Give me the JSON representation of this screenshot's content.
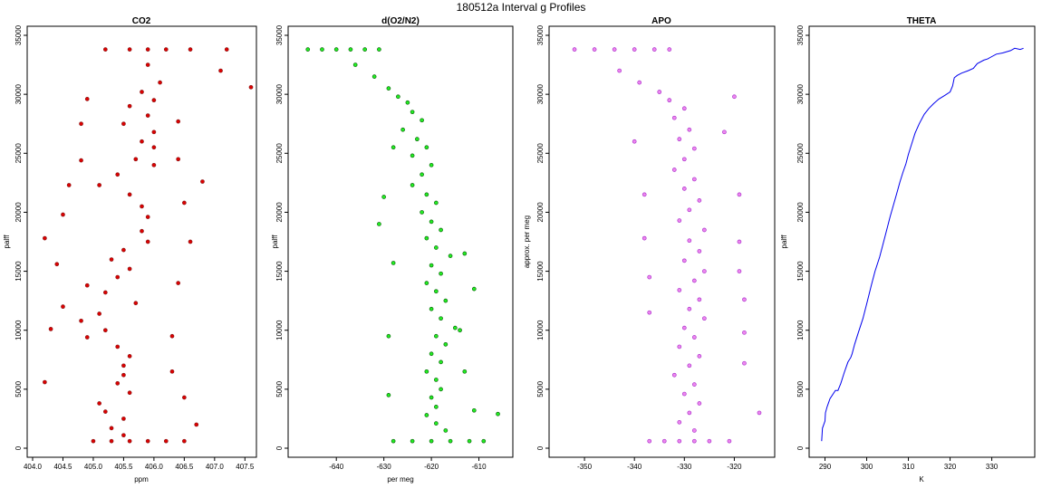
{
  "figure_title": "180512a   Interval g Profiles",
  "chart_data": [
    {
      "type": "scatter",
      "title": "CO2",
      "xlabel": "ppm",
      "ylabel": "palff",
      "xlim": [
        404.0,
        407.6
      ],
      "ylim": [
        0,
        35000
      ],
      "xticks": [
        404.0,
        404.5,
        405.0,
        405.5,
        406.0,
        406.5,
        407.0,
        407.5
      ],
      "xtick_labels": [
        "404.0",
        "404.5",
        "405.0",
        "405.5",
        "406.0",
        "406.5",
        "407.0",
        "407.5"
      ],
      "yticks": [
        0,
        5000,
        10000,
        15000,
        20000,
        25000,
        30000,
        35000
      ],
      "ytick_labels": [
        "0",
        "5000",
        "10000",
        "15000",
        "20000",
        "25000",
        "30000",
        "35000"
      ],
      "marker_color": "#dd0000",
      "marker_edge": "#8b1a1a",
      "points": [
        [
          405.0,
          600
        ],
        [
          405.3,
          600
        ],
        [
          405.6,
          600
        ],
        [
          405.9,
          600
        ],
        [
          406.2,
          600
        ],
        [
          406.5,
          600
        ],
        [
          405.2,
          33800
        ],
        [
          405.6,
          33800
        ],
        [
          405.9,
          33800
        ],
        [
          406.2,
          33800
        ],
        [
          406.6,
          33800
        ],
        [
          407.2,
          33800
        ],
        [
          405.9,
          32500
        ],
        [
          406.1,
          31000
        ],
        [
          405.8,
          30200
        ],
        [
          406.0,
          29500
        ],
        [
          405.6,
          29000
        ],
        [
          405.9,
          28200
        ],
        [
          405.5,
          27500
        ],
        [
          406.0,
          26800
        ],
        [
          405.8,
          26000
        ],
        [
          406.0,
          25500
        ],
        [
          405.7,
          24500
        ],
        [
          406.0,
          24000
        ],
        [
          405.4,
          23200
        ],
        [
          405.1,
          22300
        ],
        [
          405.6,
          21500
        ],
        [
          405.8,
          20500
        ],
        [
          405.9,
          19600
        ],
        [
          405.8,
          18400
        ],
        [
          405.9,
          17500
        ],
        [
          405.5,
          16800
        ],
        [
          405.3,
          16000
        ],
        [
          405.6,
          15200
        ],
        [
          405.4,
          14500
        ],
        [
          404.9,
          13800
        ],
        [
          405.2,
          13200
        ],
        [
          405.7,
          12300
        ],
        [
          405.1,
          11400
        ],
        [
          404.8,
          10800
        ],
        [
          405.2,
          10000
        ],
        [
          404.9,
          9400
        ],
        [
          405.4,
          8600
        ],
        [
          405.6,
          7800
        ],
        [
          405.5,
          7000
        ],
        [
          405.5,
          6200
        ],
        [
          405.4,
          5500
        ],
        [
          405.6,
          4700
        ],
        [
          405.1,
          3800
        ],
        [
          405.2,
          3100
        ],
        [
          405.5,
          2500
        ],
        [
          405.3,
          1700
        ],
        [
          405.5,
          1100
        ],
        [
          404.2,
          5600
        ],
        [
          404.3,
          10100
        ],
        [
          404.5,
          12000
        ],
        [
          404.4,
          15600
        ],
        [
          404.5,
          19800
        ],
        [
          404.6,
          22300
        ],
        [
          404.8,
          24400
        ],
        [
          404.8,
          27500
        ],
        [
          404.9,
          29600
        ],
        [
          406.4,
          27700
        ],
        [
          406.4,
          24500
        ],
        [
          406.5,
          20800
        ],
        [
          406.6,
          17500
        ],
        [
          406.4,
          14000
        ],
        [
          406.3,
          9500
        ],
        [
          406.5,
          4300
        ],
        [
          406.7,
          2000
        ],
        [
          406.3,
          6500
        ],
        [
          407.1,
          32000
        ],
        [
          407.6,
          30600
        ],
        [
          406.8,
          22600
        ],
        [
          404.2,
          17800
        ]
      ]
    },
    {
      "type": "scatter",
      "title": "d(O2/N2)",
      "xlabel": "per meg",
      "ylabel": "palff",
      "xlim": [
        -649,
        -604
      ],
      "ylim": [
        0,
        35000
      ],
      "xticks": [
        -640,
        -630,
        -620,
        -610
      ],
      "xtick_labels": [
        "-640",
        "-630",
        "-620",
        "-610"
      ],
      "yticks": [
        0,
        5000,
        10000,
        15000,
        20000,
        25000,
        30000,
        35000
      ],
      "ytick_labels": [
        "0",
        "5000",
        "10000",
        "15000",
        "20000",
        "25000",
        "30000",
        "35000"
      ],
      "marker_color": "#22ee22",
      "marker_edge": "#116611",
      "points": [
        [
          -646,
          33800
        ],
        [
          -643,
          33800
        ],
        [
          -640,
          33800
        ],
        [
          -637,
          33800
        ],
        [
          -634,
          33800
        ],
        [
          -631,
          33800
        ],
        [
          -636,
          32500
        ],
        [
          -632,
          31500
        ],
        [
          -629,
          30500
        ],
        [
          -627,
          29800
        ],
        [
          -625,
          29300
        ],
        [
          -624,
          28500
        ],
        [
          -622,
          27800
        ],
        [
          -626,
          27000
        ],
        [
          -623,
          26200
        ],
        [
          -621,
          25500
        ],
        [
          -624,
          24800
        ],
        [
          -620,
          24000
        ],
        [
          -622,
          23200
        ],
        [
          -624,
          22300
        ],
        [
          -621,
          21500
        ],
        [
          -619,
          20800
        ],
        [
          -622,
          20000
        ],
        [
          -620,
          19200
        ],
        [
          -618,
          18500
        ],
        [
          -621,
          17800
        ],
        [
          -619,
          17000
        ],
        [
          -616,
          16300
        ],
        [
          -620,
          15500
        ],
        [
          -618,
          14800
        ],
        [
          -621,
          14000
        ],
        [
          -619,
          13300
        ],
        [
          -617,
          12500
        ],
        [
          -620,
          11800
        ],
        [
          -618,
          11000
        ],
        [
          -615,
          10200
        ],
        [
          -619,
          9500
        ],
        [
          -617,
          8800
        ],
        [
          -620,
          8000
        ],
        [
          -618,
          7300
        ],
        [
          -621,
          6500
        ],
        [
          -619,
          5800
        ],
        [
          -618,
          5000
        ],
        [
          -620,
          4300
        ],
        [
          -619,
          3500
        ],
        [
          -621,
          2800
        ],
        [
          -619,
          2100
        ],
        [
          -617,
          1500
        ],
        [
          -628,
          600
        ],
        [
          -624,
          600
        ],
        [
          -620,
          600
        ],
        [
          -616,
          600
        ],
        [
          -612,
          600
        ],
        [
          -609,
          600
        ],
        [
          -606,
          2900
        ],
        [
          -611,
          3200
        ],
        [
          -611,
          13500
        ],
        [
          -613,
          16500
        ],
        [
          -614,
          10000
        ],
        [
          -629,
          4500
        ],
        [
          -629,
          9500
        ],
        [
          -628,
          15700
        ],
        [
          -630,
          21300
        ],
        [
          -628,
          25500
        ],
        [
          -631,
          19000
        ],
        [
          -613,
          6500
        ]
      ]
    },
    {
      "type": "scatter",
      "title": "APO",
      "xlabel": "",
      "ylabel": "approx. per meg",
      "xlim": [
        -356,
        -313
      ],
      "ylim": [
        0,
        35000
      ],
      "xticks": [
        -350,
        -340,
        -330,
        -320
      ],
      "xtick_labels": [
        "-350",
        "-340",
        "-330",
        "-320"
      ],
      "yticks": [
        0,
        5000,
        10000,
        15000,
        20000,
        25000,
        30000,
        35000
      ],
      "ytick_labels": [
        "0",
        "5000",
        "10000",
        "15000",
        "20000",
        "25000",
        "30000",
        "35000"
      ],
      "marker_color": "#ee88ee",
      "marker_edge": "#aa33cc",
      "points": [
        [
          -352,
          33800
        ],
        [
          -348,
          33800
        ],
        [
          -344,
          33800
        ],
        [
          -340,
          33800
        ],
        [
          -336,
          33800
        ],
        [
          -333,
          33800
        ],
        [
          -343,
          32000
        ],
        [
          -339,
          31000
        ],
        [
          -335,
          30200
        ],
        [
          -333,
          29500
        ],
        [
          -330,
          28800
        ],
        [
          -332,
          28000
        ],
        [
          -329,
          27000
        ],
        [
          -331,
          26200
        ],
        [
          -328,
          25400
        ],
        [
          -330,
          24500
        ],
        [
          -332,
          23600
        ],
        [
          -328,
          22800
        ],
        [
          -330,
          22000
        ],
        [
          -327,
          21000
        ],
        [
          -329,
          20200
        ],
        [
          -331,
          19300
        ],
        [
          -326,
          18500
        ],
        [
          -329,
          17600
        ],
        [
          -327,
          16700
        ],
        [
          -330,
          15900
        ],
        [
          -326,
          15000
        ],
        [
          -328,
          14200
        ],
        [
          -331,
          13400
        ],
        [
          -327,
          12600
        ],
        [
          -329,
          11800
        ],
        [
          -326,
          11000
        ],
        [
          -330,
          10200
        ],
        [
          -328,
          9400
        ],
        [
          -331,
          8600
        ],
        [
          -327,
          7800
        ],
        [
          -329,
          7000
        ],
        [
          -332,
          6200
        ],
        [
          -328,
          5400
        ],
        [
          -330,
          4600
        ],
        [
          -327,
          3800
        ],
        [
          -329,
          3000
        ],
        [
          -331,
          2200
        ],
        [
          -328,
          1500
        ],
        [
          -337,
          600
        ],
        [
          -334,
          600
        ],
        [
          -331,
          600
        ],
        [
          -328,
          600
        ],
        [
          -325,
          600
        ],
        [
          -321,
          600
        ],
        [
          -337,
          11500
        ],
        [
          -337,
          14500
        ],
        [
          -338,
          17800
        ],
        [
          -338,
          21500
        ],
        [
          -340,
          26000
        ],
        [
          -319,
          17500
        ],
        [
          -319,
          15000
        ],
        [
          -318,
          7200
        ],
        [
          -318,
          12600
        ],
        [
          -315,
          3000
        ],
        [
          -320,
          29800
        ],
        [
          -322,
          26800
        ],
        [
          -319,
          21500
        ],
        [
          -318,
          9800
        ]
      ]
    },
    {
      "type": "line",
      "title": "THETA",
      "xlabel": "K",
      "ylabel": "palff",
      "xlim": [
        287.5,
        339
      ],
      "ylim": [
        0,
        35000
      ],
      "xticks": [
        290,
        300,
        310,
        320,
        330
      ],
      "xtick_labels": [
        "290",
        "300",
        "310",
        "320",
        "330"
      ],
      "yticks": [
        0,
        5000,
        10000,
        15000,
        20000,
        25000,
        30000,
        35000
      ],
      "ytick_labels": [
        "0",
        "5000",
        "10000",
        "15000",
        "20000",
        "25000",
        "30000",
        "35000"
      ],
      "line_color": "#0000ee",
      "points": [
        [
          289.2,
          600
        ],
        [
          289.3,
          1200
        ],
        [
          289.4,
          1700
        ],
        [
          290.0,
          2300
        ],
        [
          290.1,
          3000
        ],
        [
          290.5,
          3500
        ],
        [
          291.2,
          4200
        ],
        [
          292.5,
          4900
        ],
        [
          293.1,
          4900
        ],
        [
          293.8,
          5500
        ],
        [
          294.6,
          6400
        ],
        [
          295.5,
          7300
        ],
        [
          296.2,
          7700
        ],
        [
          296.5,
          8000
        ],
        [
          297.1,
          8800
        ],
        [
          298.0,
          9800
        ],
        [
          299.1,
          11000
        ],
        [
          300.2,
          12500
        ],
        [
          301.1,
          13800
        ],
        [
          302.0,
          15000
        ],
        [
          303.1,
          16200
        ],
        [
          304.0,
          17400
        ],
        [
          304.8,
          18500
        ],
        [
          305.6,
          19600
        ],
        [
          306.4,
          20600
        ],
        [
          307.2,
          21600
        ],
        [
          308.0,
          22600
        ],
        [
          308.7,
          23400
        ],
        [
          309.4,
          24100
        ],
        [
          310.0,
          24900
        ],
        [
          310.8,
          25800
        ],
        [
          311.6,
          26700
        ],
        [
          312.6,
          27500
        ],
        [
          313.8,
          28300
        ],
        [
          314.9,
          28800
        ],
        [
          316.0,
          29200
        ],
        [
          317.3,
          29600
        ],
        [
          318.7,
          29900
        ],
        [
          320.0,
          30200
        ],
        [
          320.6,
          30700
        ],
        [
          321.0,
          31400
        ],
        [
          321.7,
          31600
        ],
        [
          322.8,
          31800
        ],
        [
          324.3,
          32000
        ],
        [
          325.6,
          32200
        ],
        [
          326.5,
          32600
        ],
        [
          328.1,
          32900
        ],
        [
          329.0,
          33000
        ],
        [
          330.0,
          33200
        ],
        [
          331.1,
          33400
        ],
        [
          332.6,
          33500
        ],
        [
          334.5,
          33700
        ],
        [
          335.5,
          33900
        ],
        [
          336.8,
          33800
        ],
        [
          337.6,
          33900
        ]
      ]
    }
  ]
}
